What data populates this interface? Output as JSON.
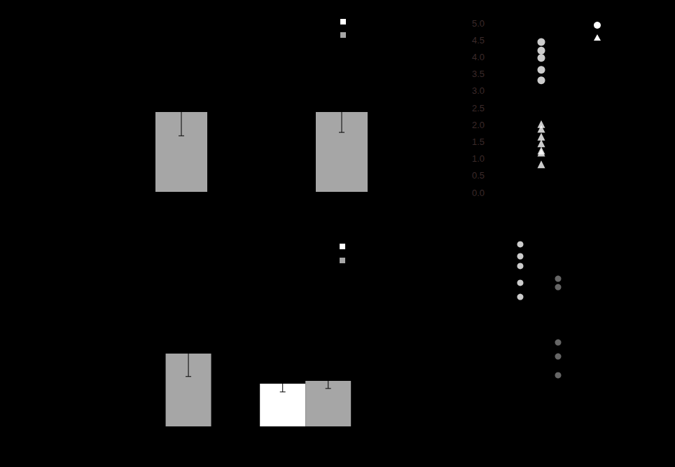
{
  "chart_data": [
    {
      "type": "bar",
      "categories": [
        null,
        null
      ],
      "series": [
        {
          "color": "#ffffff",
          "values": [
            null,
            null
          ],
          "errors": [
            null,
            null
          ]
        },
        {
          "color": "#a6a6a6",
          "values": [
            46.7,
            46.7
          ],
          "errors": [
            13.9,
            11.9
          ]
        }
      ],
      "ylim": [
        0,
        100
      ],
      "yticks": [
        0,
        25,
        50,
        75,
        100
      ],
      "grid": false,
      "tick_labels": false
    },
    {
      "type": "scatter",
      "xlim": [
        0,
        2
      ],
      "xticks": [
        0,
        1,
        2
      ],
      "series": [
        {
          "color": "#ffffff",
          "marker": "circle",
          "x": [
            1,
            1,
            1,
            1,
            1
          ],
          "values": [
            4.44,
            4.19,
            3.97,
            3.62,
            3.31
          ]
        },
        {
          "color": "#ffffff",
          "marker": "triangle",
          "x": [
            1,
            1,
            1,
            1,
            1,
            1,
            1
          ],
          "values": [
            2.02,
            1.88,
            1.65,
            1.45,
            1.24,
            1.18,
            0.83
          ]
        }
      ],
      "ylim": [
        0,
        5
      ],
      "yticks": [
        {
          "value": 0,
          "label": "0.0"
        },
        {
          "value": 0.5,
          "label": "0.5"
        },
        {
          "value": 1,
          "label": "1.0"
        },
        {
          "value": 1.5,
          "label": "1.5"
        },
        {
          "value": 2,
          "label": "2.0"
        },
        {
          "value": 2.5,
          "label": "2.5"
        },
        {
          "value": 3,
          "label": "3.0"
        },
        {
          "value": 3.5,
          "label": "3.5"
        },
        {
          "value": 4,
          "label": "4.0"
        },
        {
          "value": 4.5,
          "label": "4.5"
        },
        {
          "value": 5,
          "label": "5.0"
        }
      ],
      "grid": false,
      "tick_labels": "y"
    },
    {
      "type": "bar",
      "categories": [
        null,
        null
      ],
      "series": [
        {
          "color": "#ffffff",
          "values": [
            null,
            23.6
          ],
          "errors": [
            null,
            4.6
          ]
        },
        {
          "color": "#a6a6a6",
          "values": [
            40.2,
            25.1
          ],
          "errors": [
            12.7,
            4.2
          ]
        }
      ],
      "ylim": [
        0,
        100
      ],
      "yticks": [
        0,
        25,
        50,
        75,
        100
      ],
      "grid": false,
      "tick_labels": false
    },
    {
      "type": "scatter",
      "xlim": [
        0,
        3
      ],
      "xticks": [
        0,
        1,
        2,
        3
      ],
      "series": [
        {
          "color": "#ffffff",
          "marker": "circle",
          "x": [
            1,
            1,
            1,
            1,
            1
          ],
          "values": [
            93.2,
            87.1,
            82.1,
            73.5,
            66.3
          ]
        },
        {
          "color": "#808080",
          "marker": "circle",
          "x": [
            2,
            2,
            2,
            2,
            2
          ],
          "values": [
            75.6,
            71.3,
            43.0,
            35.8,
            26.2
          ]
        }
      ],
      "ylim": [
        0,
        100
      ],
      "yticks": [
        0,
        25,
        50,
        75,
        100
      ],
      "grid": false,
      "tick_labels": false
    }
  ]
}
